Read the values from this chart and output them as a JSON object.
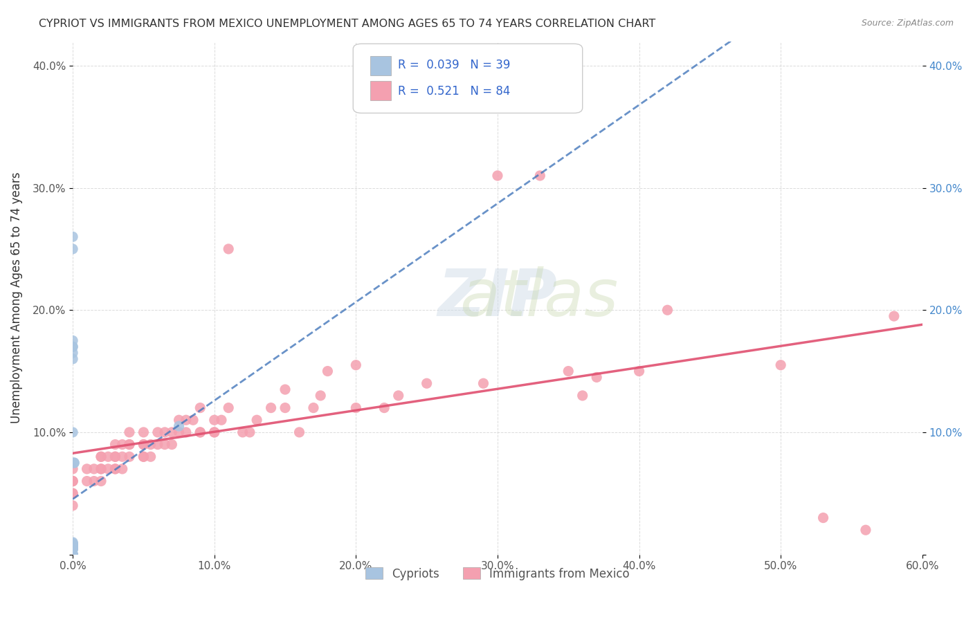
{
  "title": "CYPRIOT VS IMMIGRANTS FROM MEXICO UNEMPLOYMENT AMONG AGES 65 TO 74 YEARS CORRELATION CHART",
  "source": "Source: ZipAtlas.com",
  "xlabel": "",
  "ylabel": "Unemployment Among Ages 65 to 74 years",
  "xlim": [
    0.0,
    0.6
  ],
  "ylim": [
    0.0,
    0.42
  ],
  "xticks": [
    0.0,
    0.1,
    0.2,
    0.3,
    0.4,
    0.5,
    0.6
  ],
  "xticklabels": [
    "0.0%",
    "10.0%",
    "20.0%",
    "30.0%",
    "40.0%",
    "50.0%",
    "60.0%"
  ],
  "yticks": [
    0.0,
    0.1,
    0.2,
    0.3,
    0.4
  ],
  "yticklabels": [
    "",
    "10.0%",
    "20.0%",
    "30.0%",
    "40.0%"
  ],
  "right_yticks": [
    0.0,
    0.1,
    0.2,
    0.3,
    0.4
  ],
  "right_yticklabels": [
    "",
    "10.0%",
    "20.0%",
    "30.0%",
    "40.0%"
  ],
  "legend_R_cypriot": "0.039",
  "legend_N_cypriot": "39",
  "legend_R_mexico": "0.521",
  "legend_N_mexico": "84",
  "cypriot_color": "#a8c4e0",
  "mexico_color": "#f4a0b0",
  "cypriot_line_color": "#4477bb",
  "mexico_line_color": "#e05070",
  "background_color": "#ffffff",
  "watermark": "ZIPatlas",
  "cypriot_x": [
    0.0,
    0.0,
    0.0,
    0.0,
    0.0,
    0.0,
    0.0,
    0.0,
    0.0,
    0.0,
    0.0,
    0.0,
    0.0,
    0.0,
    0.0,
    0.0,
    0.0,
    0.0,
    0.0,
    0.0,
    0.0,
    0.0,
    0.0,
    0.0,
    0.0,
    0.0,
    0.0,
    0.0,
    0.0,
    0.001,
    0.001,
    0.0,
    0.0,
    0.0,
    0.0,
    0.0,
    0.075,
    0.0,
    0.0
  ],
  "cypriot_y": [
    0.0,
    0.0,
    0.0,
    0.0,
    0.0,
    0.0,
    0.0,
    0.0,
    0.004,
    0.004,
    0.005,
    0.005,
    0.005,
    0.005,
    0.006,
    0.006,
    0.007,
    0.007,
    0.008,
    0.008,
    0.008,
    0.008,
    0.009,
    0.009,
    0.009,
    0.01,
    0.1,
    0.165,
    0.17,
    0.075,
    0.075,
    0.16,
    0.17,
    0.175,
    0.25,
    0.26,
    0.105,
    0.0,
    0.0
  ],
  "mexico_x": [
    0.0,
    0.0,
    0.0,
    0.0,
    0.0,
    0.0,
    0.0,
    0.01,
    0.01,
    0.015,
    0.015,
    0.02,
    0.02,
    0.02,
    0.02,
    0.02,
    0.025,
    0.025,
    0.03,
    0.03,
    0.03,
    0.03,
    0.03,
    0.035,
    0.035,
    0.035,
    0.04,
    0.04,
    0.04,
    0.04,
    0.05,
    0.05,
    0.05,
    0.05,
    0.05,
    0.055,
    0.055,
    0.06,
    0.06,
    0.065,
    0.065,
    0.07,
    0.07,
    0.075,
    0.075,
    0.08,
    0.08,
    0.085,
    0.09,
    0.09,
    0.09,
    0.1,
    0.1,
    0.1,
    0.105,
    0.11,
    0.11,
    0.12,
    0.125,
    0.13,
    0.14,
    0.15,
    0.15,
    0.16,
    0.17,
    0.175,
    0.18,
    0.2,
    0.2,
    0.22,
    0.23,
    0.25,
    0.29,
    0.3,
    0.33,
    0.35,
    0.36,
    0.37,
    0.4,
    0.42,
    0.5,
    0.53,
    0.56,
    0.58
  ],
  "mexico_y": [
    0.04,
    0.05,
    0.05,
    0.06,
    0.06,
    0.06,
    0.07,
    0.06,
    0.07,
    0.06,
    0.07,
    0.06,
    0.07,
    0.07,
    0.08,
    0.08,
    0.07,
    0.08,
    0.07,
    0.07,
    0.08,
    0.08,
    0.09,
    0.07,
    0.08,
    0.09,
    0.08,
    0.09,
    0.09,
    0.1,
    0.08,
    0.08,
    0.09,
    0.09,
    0.1,
    0.08,
    0.09,
    0.09,
    0.1,
    0.09,
    0.1,
    0.09,
    0.1,
    0.1,
    0.11,
    0.1,
    0.11,
    0.11,
    0.1,
    0.1,
    0.12,
    0.1,
    0.1,
    0.11,
    0.11,
    0.12,
    0.25,
    0.1,
    0.1,
    0.11,
    0.12,
    0.12,
    0.135,
    0.1,
    0.12,
    0.13,
    0.15,
    0.12,
    0.155,
    0.12,
    0.13,
    0.14,
    0.14,
    0.31,
    0.31,
    0.15,
    0.13,
    0.145,
    0.15,
    0.2,
    0.155,
    0.03,
    0.02,
    0.195
  ]
}
